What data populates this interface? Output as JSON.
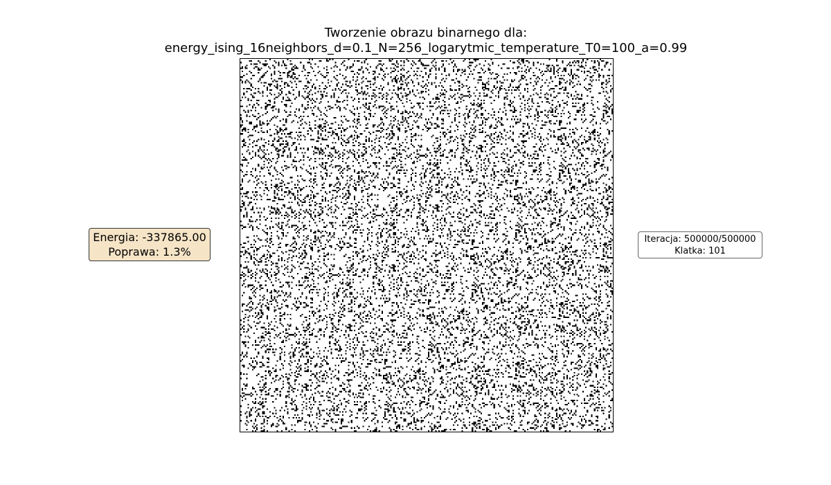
{
  "title": {
    "line1": "Tworzenie obrazu binarnego dla:",
    "line2": "energy_ising_16neighbors_d=0.1_N=256_logarytmic_temperature_T0=100_a=0.99"
  },
  "energy_panel": {
    "energy": "Energia: -337865.00",
    "improvement": "Poprawa: 1.3%",
    "background_color": "#f5e4c6"
  },
  "iteration_panel": {
    "iteration": "Iteracja: 500000/500000",
    "frame": "Klatka: 101"
  },
  "grid": {
    "size": 256,
    "black_fraction": 0.17,
    "colors": {
      "on": "#000000",
      "off": "#ffffff"
    }
  }
}
